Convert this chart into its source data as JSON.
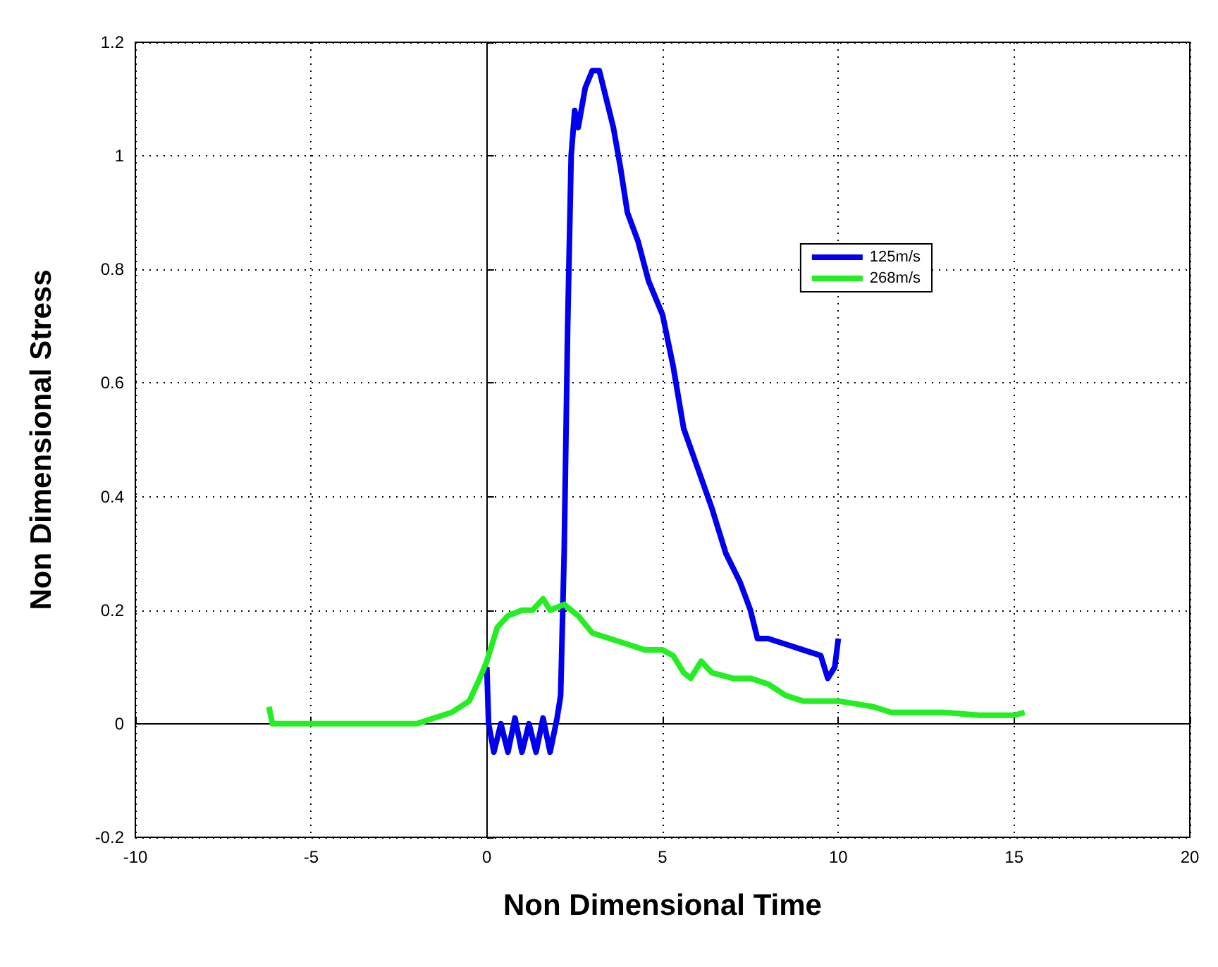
{
  "chart_data": {
    "type": "line",
    "xlabel": "Non Dimensional Time",
    "ylabel": "Non Dimensional Stress",
    "xlim": [
      -10,
      20
    ],
    "xticks": [
      -10,
      -5,
      0,
      5,
      10,
      15,
      20
    ],
    "ylim": [
      -0.2,
      1.2
    ],
    "yticks": [
      -0.2,
      0,
      0.2,
      0.4,
      0.6,
      0.8,
      1,
      1.2
    ],
    "grid": true,
    "legend": "top right",
    "line_style": "solid",
    "marker": "none",
    "series": [
      {
        "name": "125m/s",
        "color": "#0000ee",
        "x": [
          0,
          0.05,
          0.2,
          0.4,
          0.6,
          0.8,
          1.0,
          1.2,
          1.4,
          1.6,
          1.8,
          2.0,
          2.1,
          2.2,
          2.3,
          2.4,
          2.5,
          2.6,
          2.8,
          3.0,
          3.2,
          3.4,
          3.6,
          3.8,
          4.0,
          4.3,
          4.6,
          5.0,
          5.3,
          5.6,
          6.0,
          6.4,
          6.8,
          7.2,
          7.5,
          7.7,
          8.0,
          8.5,
          9.0,
          9.5,
          9.7,
          9.9,
          10.0
        ],
        "values": [
          0.1,
          0,
          -0.05,
          0,
          -0.05,
          0.01,
          -0.05,
          0,
          -0.05,
          0.01,
          -0.05,
          0.01,
          0.05,
          0.3,
          0.7,
          1.0,
          1.08,
          1.05,
          1.12,
          1.15,
          1.15,
          1.1,
          1.05,
          0.98,
          0.9,
          0.85,
          0.78,
          0.72,
          0.63,
          0.52,
          0.45,
          0.38,
          0.3,
          0.25,
          0.2,
          0.15,
          0.15,
          0.14,
          0.13,
          0.12,
          0.08,
          0.1,
          0.15
        ]
      },
      {
        "name": "268m/s",
        "color": "#22ee22",
        "x": [
          -6.2,
          -6.1,
          -5,
          -4,
          -3,
          -2,
          -1.5,
          -1,
          -0.5,
          -0.2,
          0,
          0.3,
          0.6,
          1.0,
          1.3,
          1.6,
          1.8,
          2.2,
          2.6,
          3.0,
          3.5,
          4.0,
          4.5,
          5.0,
          5.3,
          5.6,
          5.8,
          6.1,
          6.4,
          7.0,
          7.5,
          8.0,
          8.5,
          9.0,
          9.5,
          10,
          10.5,
          11,
          11.5,
          12,
          13,
          14,
          15,
          15.3
        ],
        "values": [
          0.03,
          0.0,
          0.0,
          0.0,
          0.0,
          0.0,
          0.01,
          0.02,
          0.04,
          0.08,
          0.11,
          0.17,
          0.19,
          0.2,
          0.2,
          0.22,
          0.2,
          0.21,
          0.19,
          0.16,
          0.15,
          0.14,
          0.13,
          0.13,
          0.12,
          0.09,
          0.08,
          0.11,
          0.09,
          0.08,
          0.08,
          0.07,
          0.05,
          0.04,
          0.04,
          0.04,
          0.035,
          0.03,
          0.02,
          0.02,
          0.02,
          0.015,
          0.015,
          0.02
        ]
      }
    ]
  }
}
